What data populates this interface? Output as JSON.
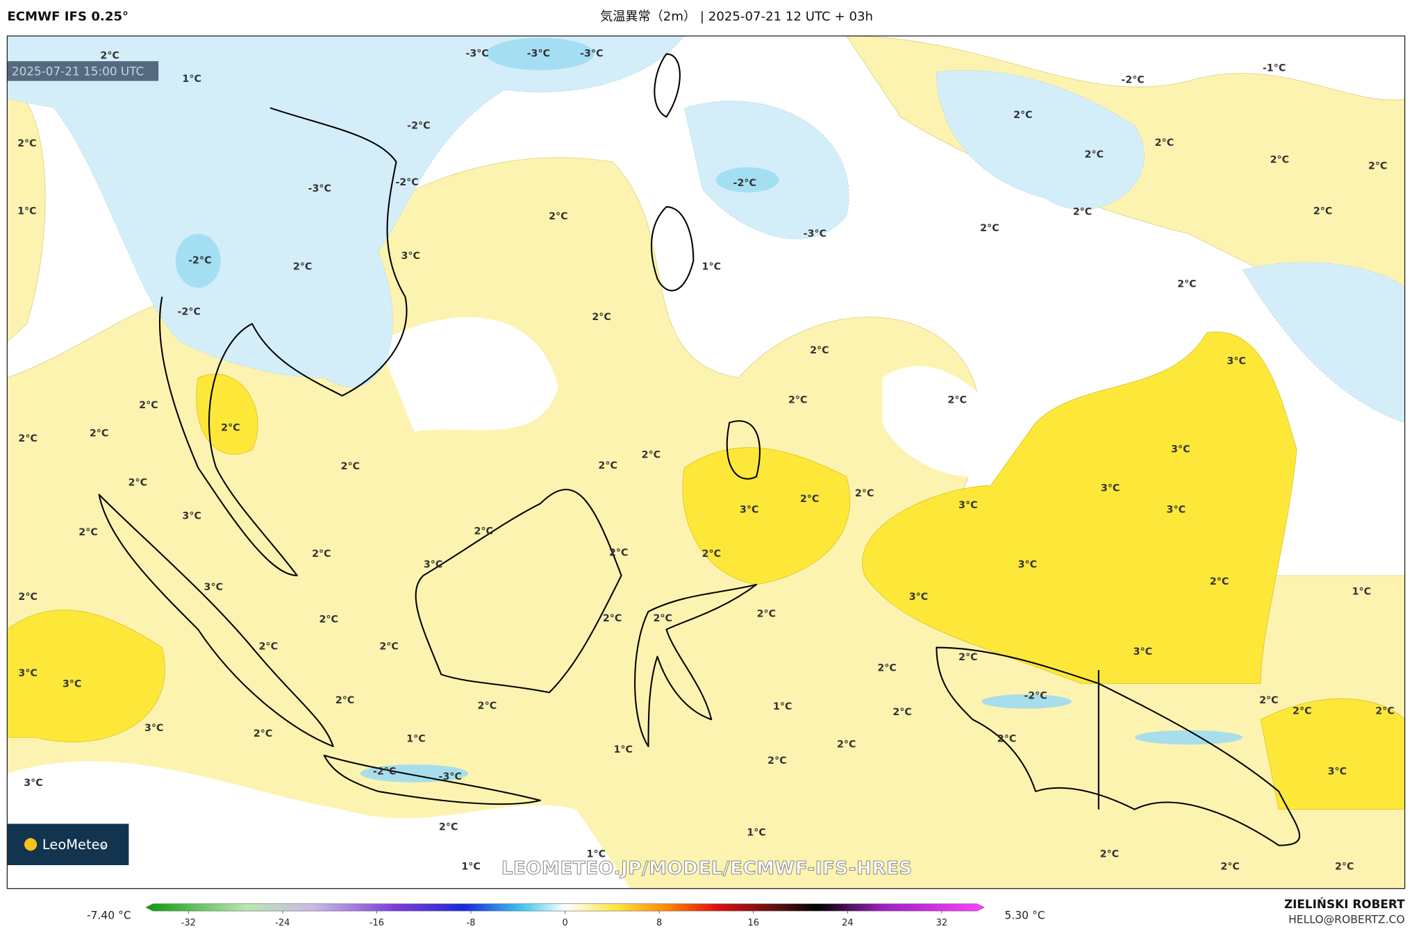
{
  "header": {
    "left": "ECMWF IFS 0.25°",
    "title": "気温異常（2m） | 2025-07-21 12 UTC + 03h"
  },
  "map": {
    "timestamp": "2025-07-21 15:00 UTC",
    "watermark": "LEOMETEO.JP/MODEL/ECMWF-IFS-HRES",
    "labels": [
      "-3°C",
      "-3°C",
      "-3°C",
      "1°C",
      "2°C",
      "2°C",
      "1°C",
      "-2°C",
      "-2°C",
      "-3°C",
      "-2°C",
      "2°C",
      "-2°C",
      "3°C",
      "2°C",
      "2°C",
      "-2°C",
      "-3°C",
      "1°C",
      "-2°C",
      "-1°C",
      "2°C",
      "2°C",
      "2°C",
      "2°C",
      "2°C",
      "2°C",
      "2°C",
      "2°C",
      "2°C",
      "3°C",
      "2°C",
      "2°C",
      "2°C",
      "3°C",
      "3°C",
      "3°C",
      "2°C",
      "2°C",
      "2°C",
      "2°C",
      "2°C",
      "2°C",
      "2°C",
      "2°C",
      "3°C",
      "2°C",
      "2°C",
      "2°C",
      "3°C",
      "2°C",
      "3°C",
      "2°C",
      "2°C",
      "3°C",
      "2°C",
      "3°C",
      "2°C",
      "1°C",
      "2°C",
      "3°C",
      "2°C",
      "3°C",
      "2°C",
      "2°C",
      "2°C",
      "2°C",
      "2°C",
      "3°C",
      "2°C",
      "2°C",
      "3°C",
      "3°C",
      "-2°C",
      "2°C",
      "2°C",
      "1°C",
      "2°C",
      "2°C",
      "2°C",
      "2°C",
      "3°C",
      "2°C",
      "1°C",
      "1°C",
      "2°C",
      "2°C",
      "2°C",
      "3°C",
      "-2°C",
      "-3°C",
      "3°C",
      "2°C",
      "1°C",
      "1°C",
      "1°C",
      "2°C",
      "2°C",
      "2°C"
    ]
  },
  "logo": {
    "name": "LeoMeteo",
    "suffix": "jp"
  },
  "colorbar": {
    "min_label": "-7.40 °C",
    "max_label": "5.30 °C",
    "lim": [
      -35,
      35
    ],
    "ticks": [
      -32,
      -24,
      -16,
      -8,
      0,
      8,
      16,
      24,
      32
    ]
  },
  "credit": {
    "author": "ZIELIŃSKI ROBERT",
    "email": "HELLO@ROBERTZ.CO"
  }
}
